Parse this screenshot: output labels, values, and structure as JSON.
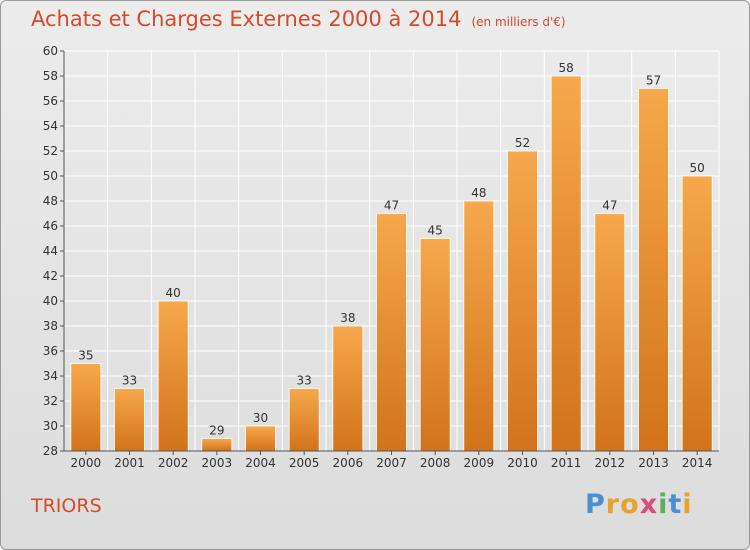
{
  "header": {
    "title": "Achats et Charges Externes 2000 à 2014",
    "subtitle": "(en milliers d'€)"
  },
  "footer": {
    "place": "TRIORS",
    "logo_text": "Proxiti"
  },
  "colors": {
    "title": "#d64a2a",
    "bar_light": "#f7a84c",
    "bar_dark": "#d2731b",
    "axis": "#555555"
  },
  "chart_data": {
    "type": "bar",
    "categories": [
      "2000",
      "2001",
      "2002",
      "2003",
      "2004",
      "2005",
      "2006",
      "2007",
      "2008",
      "2009",
      "2010",
      "2011",
      "2012",
      "2013",
      "2014"
    ],
    "values": [
      35,
      33,
      40,
      29,
      30,
      33,
      38,
      47,
      45,
      48,
      52,
      58,
      47,
      57,
      50
    ],
    "ylim": [
      28,
      60
    ],
    "yticks": [
      28,
      30,
      32,
      34,
      36,
      38,
      40,
      42,
      44,
      46,
      48,
      50,
      52,
      54,
      56,
      58,
      60
    ],
    "grid": true,
    "data_labels": true
  }
}
